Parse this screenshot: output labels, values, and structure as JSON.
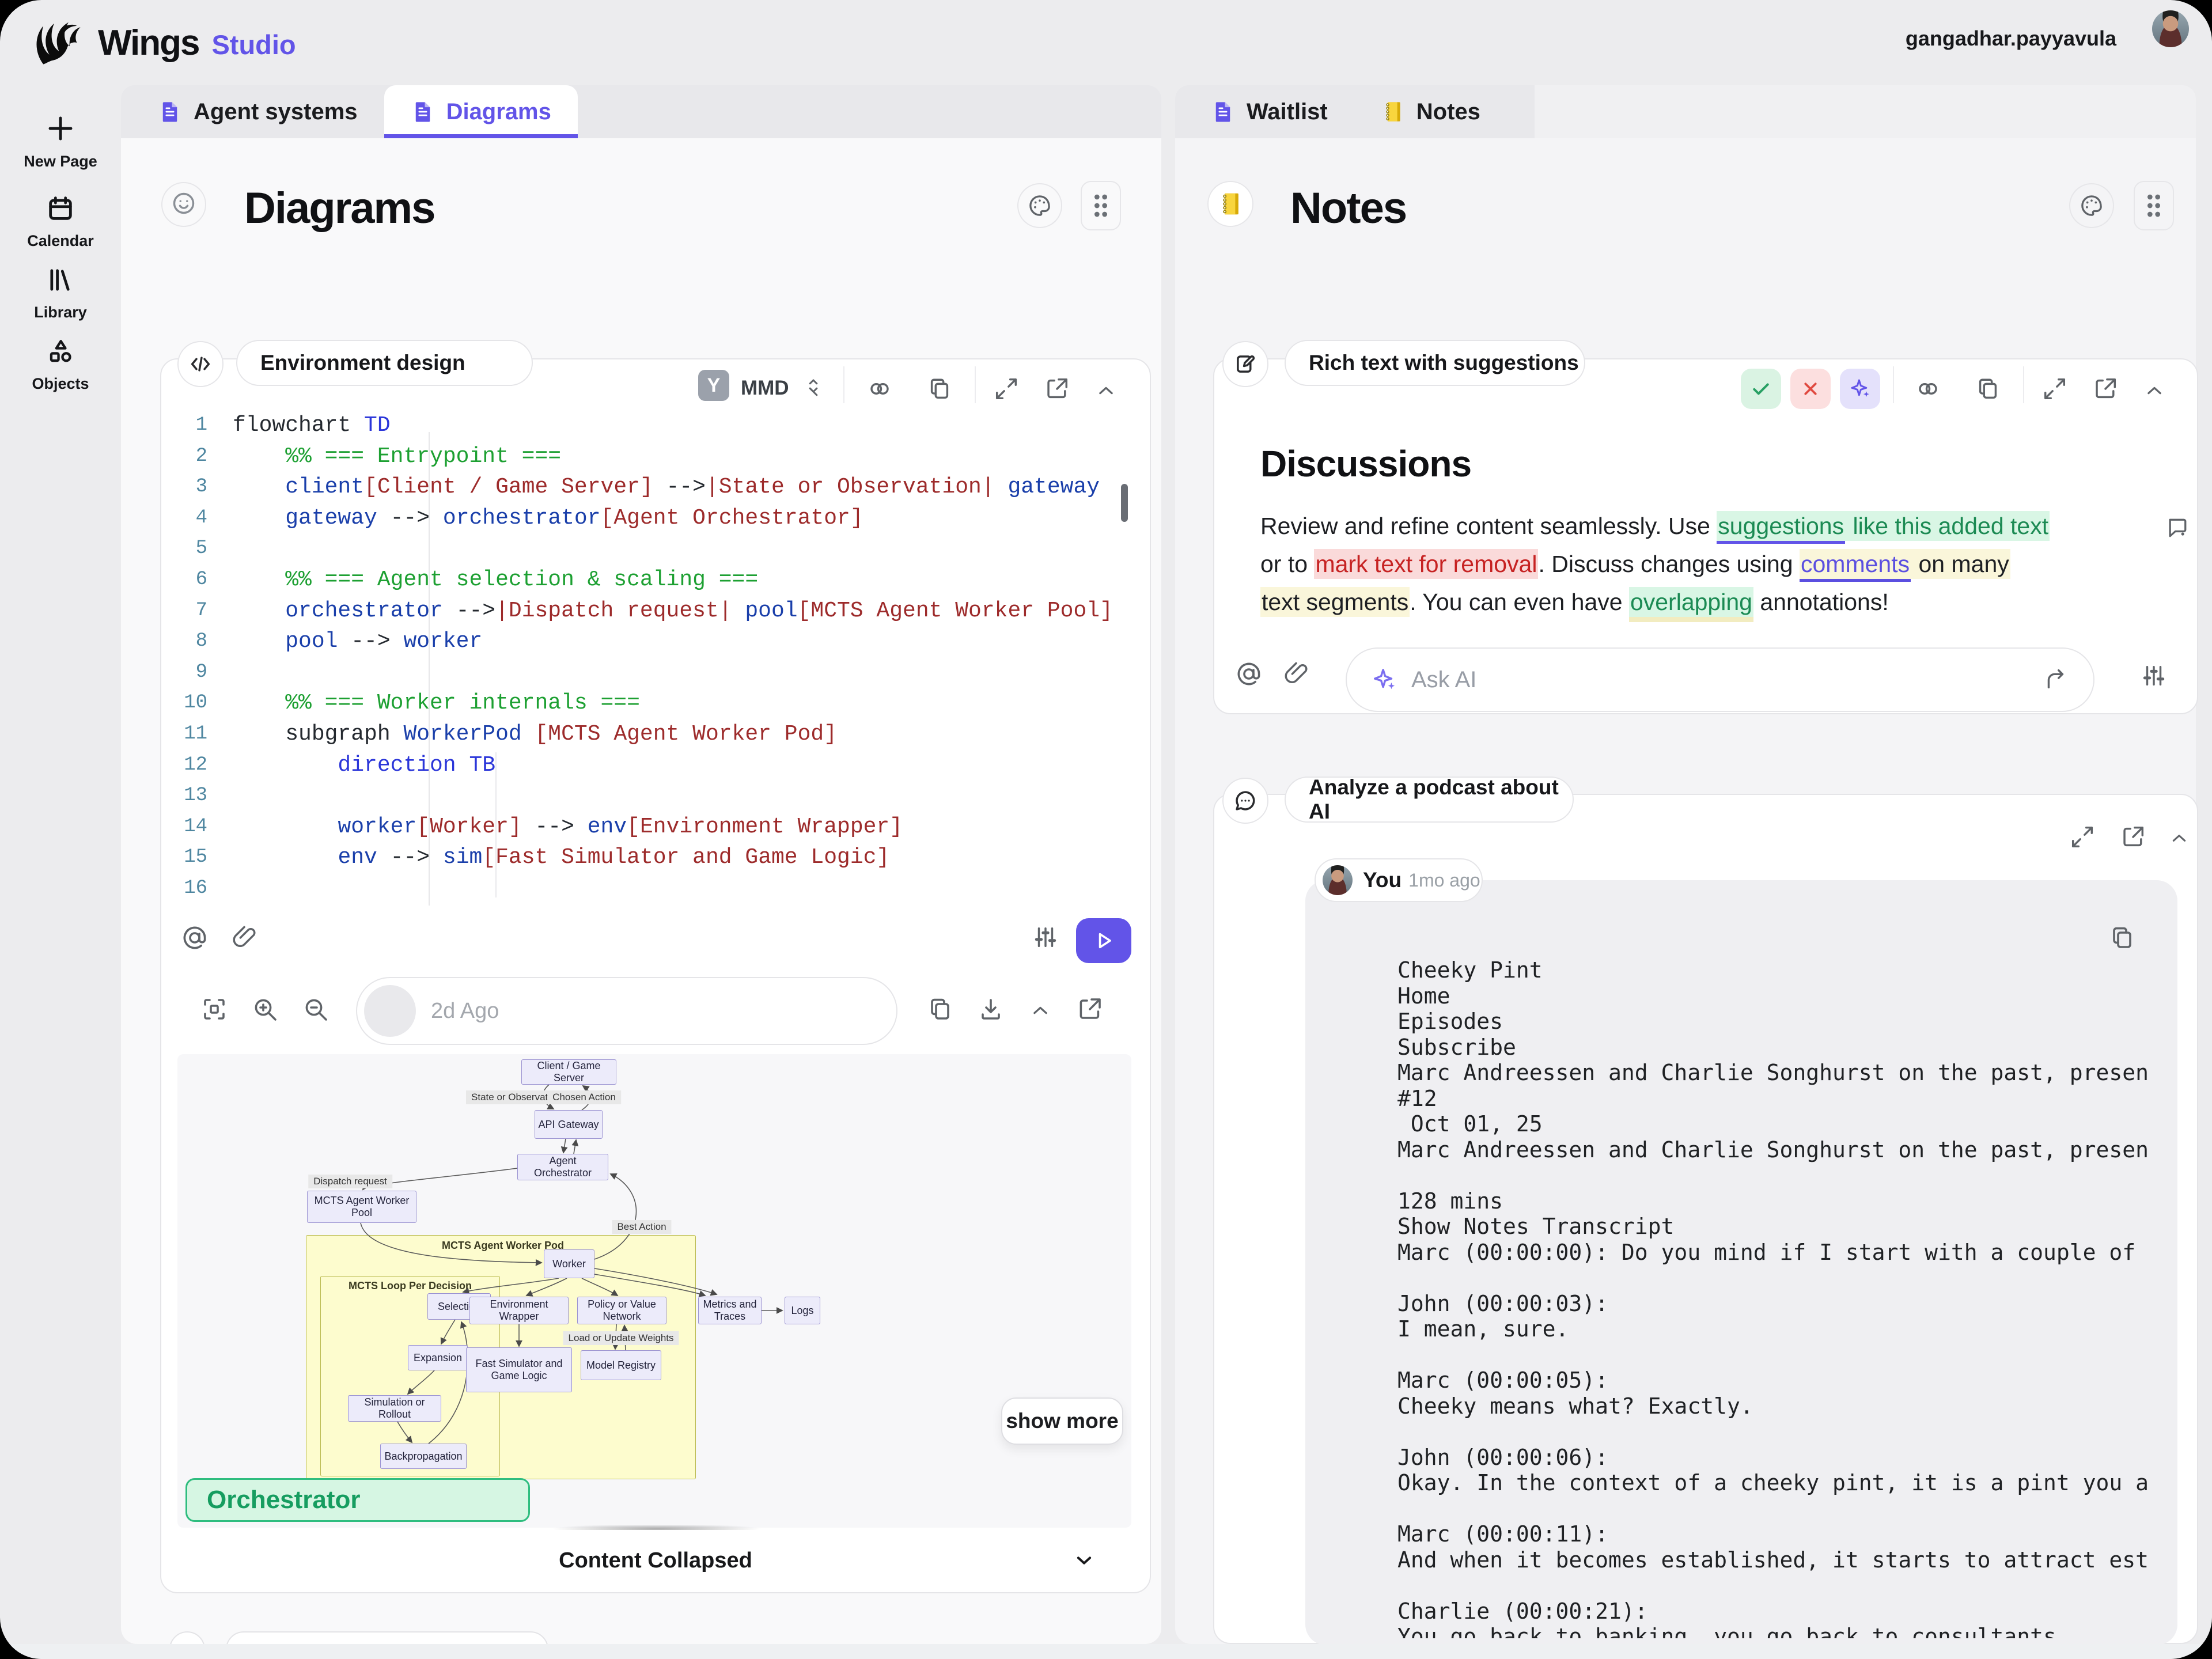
{
  "topbar": {
    "brand": "Wings",
    "suffix": "Studio",
    "username": "gangadhar.payyavula"
  },
  "rail": [
    {
      "label": "New Page",
      "icon": "plus-icon"
    },
    {
      "label": "Calendar",
      "icon": "calendar-icon"
    },
    {
      "label": "Library",
      "icon": "library-icon"
    },
    {
      "label": "Objects",
      "icon": "objects-icon"
    }
  ],
  "left": {
    "tabs": [
      {
        "label": "Agent systems",
        "icon": "document-icon",
        "active": false
      },
      {
        "label": "Diagrams",
        "icon": "document-icon",
        "active": true
      }
    ],
    "title": "Diagrams",
    "card": {
      "name": "Environment design",
      "format_badge": "Y",
      "format": "MMD",
      "timestamp": "2d Ago",
      "show_more": "show more",
      "tooltip": "Orchestrator",
      "footer": "Content Collapsed",
      "code": [
        [
          [
            "p",
            "flowchart "
          ],
          [
            "kw",
            "TD"
          ]
        ],
        [
          [
            "cm",
            "    %% === Entrypoint ==="
          ]
        ],
        [
          [
            "p",
            "    "
          ],
          [
            "id",
            "client"
          ],
          [
            "lbl",
            "[Client / Game Server]"
          ],
          [
            "p",
            " -->"
          ],
          [
            "lbl",
            "|State or Observation|"
          ],
          [
            "p",
            " "
          ],
          [
            "id",
            "gateway"
          ]
        ],
        [
          [
            "p",
            "    "
          ],
          [
            "id",
            "gateway"
          ],
          [
            "p",
            " --> "
          ],
          [
            "id",
            "orchestrator"
          ],
          [
            "lbl",
            "[Agent Orchestrator]"
          ]
        ],
        [],
        [
          [
            "cm",
            "    %% === Agent selection & scaling ==="
          ]
        ],
        [
          [
            "p",
            "    "
          ],
          [
            "id",
            "orchestrator"
          ],
          [
            "p",
            " -->"
          ],
          [
            "lbl",
            "|Dispatch request|"
          ],
          [
            "p",
            " "
          ],
          [
            "id",
            "pool"
          ],
          [
            "lbl",
            "[MCTS Agent Worker Pool]"
          ]
        ],
        [
          [
            "p",
            "    "
          ],
          [
            "id",
            "pool"
          ],
          [
            "p",
            " --> "
          ],
          [
            "id",
            "worker"
          ]
        ],
        [],
        [
          [
            "cm",
            "    %% === Worker internals ==="
          ]
        ],
        [
          [
            "p",
            "    subgraph "
          ],
          [
            "id",
            "WorkerPod"
          ],
          [
            "p",
            " "
          ],
          [
            "lbl",
            "[MCTS Agent Worker Pod]"
          ]
        ],
        [
          [
            "kw",
            "        direction TB"
          ]
        ],
        [],
        [
          [
            "p",
            "        "
          ],
          [
            "id",
            "worker"
          ],
          [
            "lbl",
            "[Worker]"
          ],
          [
            "p",
            " --> "
          ],
          [
            "id",
            "env"
          ],
          [
            "lbl",
            "[Environment Wrapper]"
          ]
        ],
        [
          [
            "p",
            "        "
          ],
          [
            "id",
            "env"
          ],
          [
            "p",
            " --> "
          ],
          [
            "id",
            "sim"
          ],
          [
            "lbl",
            "[Fast Simulator and Game Logic]"
          ]
        ],
        []
      ]
    },
    "diagram": {
      "nodes": [
        {
          "id": "client",
          "label": "Client / Game Server"
        },
        {
          "id": "gateway",
          "label": "API Gateway"
        },
        {
          "id": "orchestrator",
          "label": "Agent Orchestrator"
        },
        {
          "id": "pool",
          "label": "MCTS Agent Worker Pool"
        },
        {
          "id": "worker",
          "label": "Worker"
        },
        {
          "id": "selection",
          "label": "Selection"
        },
        {
          "id": "expansion",
          "label": "Expansion"
        },
        {
          "id": "simulation",
          "label": "Simulation or Rollout"
        },
        {
          "id": "backprop",
          "label": "Backpropagation"
        },
        {
          "id": "env",
          "label": "Environment Wrapper"
        },
        {
          "id": "policy",
          "label": "Policy or Value Network"
        },
        {
          "id": "metrics",
          "label": "Metrics and Traces"
        },
        {
          "id": "logs",
          "label": "Logs"
        },
        {
          "id": "sim",
          "label": "Fast Simulator and Game Logic"
        },
        {
          "id": "registry",
          "label": "Model Registry"
        }
      ],
      "edge_labels": [
        "State or Observation",
        "Chosen Action",
        "Dispatch request",
        "Best Action",
        "Load or Update Weights"
      ],
      "subgraphs": [
        "MCTS Agent Worker Pod",
        "MCTS Loop Per Decision"
      ]
    }
  },
  "right": {
    "tabs": [
      {
        "label": "Waitlist",
        "icon": "document-icon",
        "active": false
      },
      {
        "label": "Notes",
        "icon": "notebook-icon",
        "active": false
      }
    ],
    "title": "Notes",
    "rich": {
      "name": "Rich text with suggestions",
      "heading": "Discussions",
      "segments": [
        {
          "t": "Review and refine content seamlessly. Use ",
          "s": "plain"
        },
        {
          "t": "suggestions",
          "s": "add_u"
        },
        {
          "t": " like this added text",
          "s": "add"
        },
        {
          "t": "\nor to ",
          "s": "plain"
        },
        {
          "t": "mark text for removal",
          "s": "remove"
        },
        {
          "t": ". Discuss changes using ",
          "s": "plain"
        },
        {
          "t": "comments",
          "s": "comment"
        },
        {
          "t": " on many",
          "s": "segment"
        },
        {
          "t": "\n",
          "s": "plain"
        },
        {
          "t": "text segments",
          "s": "segment"
        },
        {
          "t": ". You can even have ",
          "s": "plain"
        },
        {
          "t": "overlapping",
          "s": "overlap"
        },
        {
          "t": " annotations!",
          "s": "plain"
        }
      ],
      "ask_placeholder": "Ask AI"
    },
    "podcast": {
      "name": "Analyze a podcast about AI",
      "author": "You",
      "time": "1mo ago",
      "transcript": [
        "Cheeky Pint",
        "Home",
        "Episodes",
        "Subscribe",
        "Marc Andreessen and Charlie Songhurst on the past, presen",
        "#12",
        " Oct 01, 25",
        "Marc Andreessen and Charlie Songhurst on the past, presen",
        "",
        "128 mins",
        "Show Notes Transcript",
        "Marc (00:00:00): Do you mind if I start with a couple of",
        "",
        "John (00:00:03):",
        "I mean, sure.",
        "",
        "Marc (00:00:05):",
        "Cheeky means what? Exactly.",
        "",
        "John (00:00:06):",
        "Okay. In the context of a cheeky pint, it is a pint you a",
        "",
        "Marc (00:00:11):",
        "And when it becomes established, it starts to attract est",
        "",
        "Charlie (00:00:21):",
        "You go back to banking, you go back to consultants."
      ]
    }
  }
}
